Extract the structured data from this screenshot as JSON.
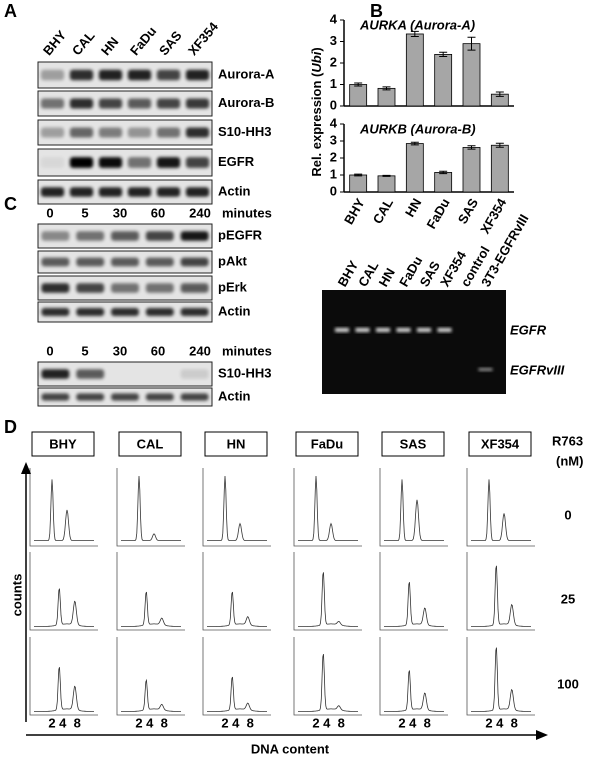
{
  "panel_a": {
    "label": "A",
    "lanes": [
      "BHY",
      "CAL",
      "HN",
      "FaDu",
      "SAS",
      "XF354"
    ],
    "rows": [
      "Aurora-A",
      "Aurora-B",
      "S10-HH3",
      "EGFR",
      "Actin"
    ]
  },
  "panel_b": {
    "label": "B",
    "ylabel_parts": [
      "Rel. expression (",
      "Ubi",
      ")"
    ]
  },
  "chart_data": [
    {
      "type": "bar",
      "title": "AURKA (Aurora-A)",
      "categories": [
        null,
        null,
        null,
        null,
        null,
        null
      ],
      "series": [
        {
          "color": "#a6a6a6",
          "values": [
            1.0,
            0.82,
            3.35,
            2.4,
            2.9,
            0.55
          ],
          "errors": [
            0.07,
            0.07,
            0.12,
            0.1,
            0.3,
            0.1
          ]
        }
      ],
      "ylim": [
        0,
        4
      ],
      "yticks": [
        0,
        1,
        2,
        3,
        4
      ]
    },
    {
      "type": "bar",
      "title": "AURKB (Aurora-B)",
      "categories": [
        "BHY",
        "CAL",
        "HN",
        "FaDu",
        "SAS",
        "XF354"
      ],
      "series": [
        {
          "color": "#a6a6a6",
          "values": [
            1.0,
            0.95,
            2.85,
            1.15,
            2.62,
            2.75
          ],
          "errors": [
            0.05,
            0.03,
            0.08,
            0.07,
            0.1,
            0.12
          ]
        }
      ],
      "ylim": [
        0,
        4
      ],
      "yticks": [
        0,
        1,
        2,
        3,
        4
      ]
    }
  ],
  "gel": {
    "lanes": [
      "BHY",
      "CAL",
      "HN",
      "FaDu",
      "SAS",
      "XF354",
      "control",
      "3T3-EGFRvIII"
    ],
    "bands": [
      "EGFR",
      "EGFRvIII"
    ]
  },
  "panel_c": {
    "label": "C",
    "blots": [
      {
        "times": [
          0,
          5,
          30,
          60,
          240
        ],
        "unit": "minutes",
        "rows": [
          "pEGFR",
          "pAkt",
          "pErk",
          "Actin"
        ]
      },
      {
        "times": [
          0,
          5,
          30,
          60,
          240
        ],
        "unit": "minutes",
        "rows": [
          "S10-HH3",
          "Actin"
        ]
      }
    ]
  },
  "panel_d": {
    "label": "D",
    "cell_lines": [
      "BHY",
      "CAL",
      "HN",
      "FaDu",
      "SAS",
      "XF354"
    ],
    "dose_title": [
      "R763",
      "(nM)"
    ],
    "doses": [
      0,
      25,
      100
    ],
    "x_ticks": [
      "2",
      "4",
      "8"
    ],
    "ylabel": "counts",
    "xlabel": "DNA content"
  }
}
